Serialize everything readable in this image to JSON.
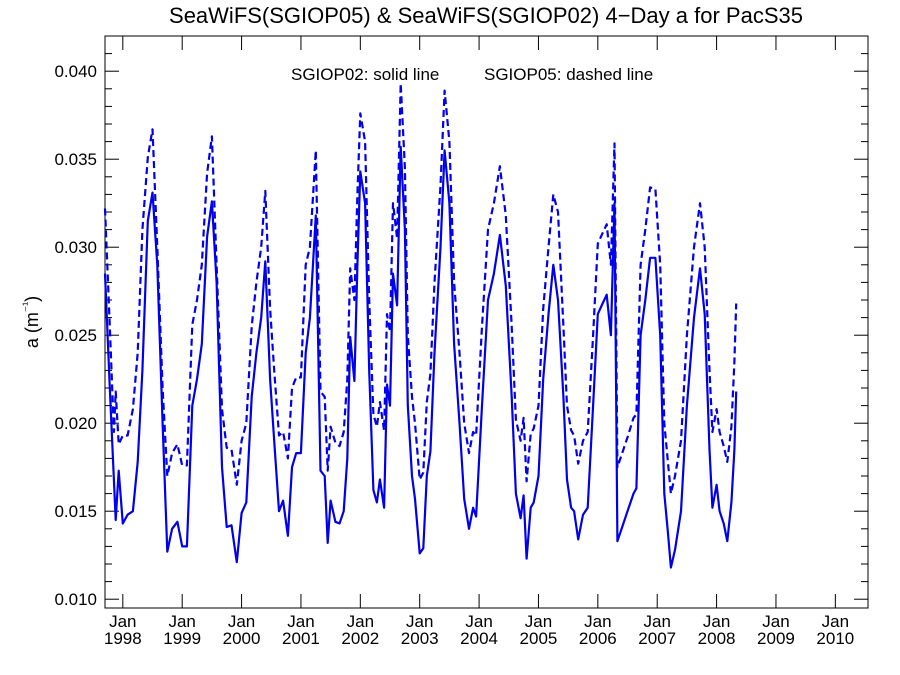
{
  "chart_data": {
    "type": "line",
    "title": "SeaWiFS(SGIOP05) & SeaWiFS(SGIOP02) 4−Day a for PacS35",
    "ylabel": "a (m⁻¹)",
    "xlabel": "",
    "annotations": [
      "SGIOP02: solid line",
      "SGIOP05: dashed line"
    ],
    "xlim": [
      1997.7,
      2010.55
    ],
    "ylim": [
      0.0095,
      0.042
    ],
    "y_ticks": [
      0.01,
      0.015,
      0.02,
      0.025,
      0.03,
      0.035,
      0.04
    ],
    "y_tick_labels": [
      "0.010",
      "0.015",
      "0.020",
      "0.025",
      "0.030",
      "0.035",
      "0.040"
    ],
    "x_ticks": [
      1998,
      1999,
      2000,
      2001,
      2002,
      2003,
      2004,
      2005,
      2006,
      2007,
      2008,
      2009,
      2010
    ],
    "x_tick_month": "Jan",
    "x_tick_years": [
      "1998",
      "1999",
      "2000",
      "2001",
      "2002",
      "2003",
      "2004",
      "2005",
      "2006",
      "2007",
      "2008",
      "2009",
      "2010"
    ],
    "grid": false,
    "line_color": "#0000ee",
    "series": [
      {
        "style": "solid",
        "points": [
          [
            1997.7,
            0.0285
          ],
          [
            1997.78,
            0.022
          ],
          [
            1997.88,
            0.0145
          ],
          [
            1997.93,
            0.0173
          ],
          [
            1998.0,
            0.0143
          ],
          [
            1998.08,
            0.0148
          ],
          [
            1998.17,
            0.015
          ],
          [
            1998.25,
            0.0178
          ],
          [
            1998.33,
            0.023
          ],
          [
            1998.42,
            0.0315
          ],
          [
            1998.5,
            0.0331
          ],
          [
            1998.58,
            0.029
          ],
          [
            1998.67,
            0.02
          ],
          [
            1998.75,
            0.0127
          ],
          [
            1998.83,
            0.014
          ],
          [
            1998.92,
            0.0144
          ],
          [
            1999.0,
            0.013
          ],
          [
            1999.08,
            0.013
          ],
          [
            1999.17,
            0.021
          ],
          [
            1999.25,
            0.0225
          ],
          [
            1999.33,
            0.0245
          ],
          [
            1999.42,
            0.0306
          ],
          [
            1999.5,
            0.0326
          ],
          [
            1999.58,
            0.028
          ],
          [
            1999.67,
            0.0175
          ],
          [
            1999.75,
            0.0141
          ],
          [
            1999.83,
            0.0142
          ],
          [
            1999.92,
            0.0121
          ],
          [
            2000.0,
            0.0149
          ],
          [
            2000.08,
            0.0155
          ],
          [
            2000.17,
            0.0215
          ],
          [
            2000.25,
            0.024
          ],
          [
            2000.33,
            0.026
          ],
          [
            2000.4,
            0.0292
          ],
          [
            2000.48,
            0.0225
          ],
          [
            2000.55,
            0.019
          ],
          [
            2000.63,
            0.015
          ],
          [
            2000.7,
            0.0156
          ],
          [
            2000.78,
            0.0136
          ],
          [
            2000.85,
            0.0175
          ],
          [
            2000.92,
            0.0183
          ],
          [
            2001.0,
            0.0183
          ],
          [
            2001.08,
            0.024
          ],
          [
            2001.15,
            0.026
          ],
          [
            2001.25,
            0.0318
          ],
          [
            2001.33,
            0.0173
          ],
          [
            2001.4,
            0.017
          ],
          [
            2001.45,
            0.0132
          ],
          [
            2001.5,
            0.0156
          ],
          [
            2001.58,
            0.0144
          ],
          [
            2001.65,
            0.0143
          ],
          [
            2001.72,
            0.015
          ],
          [
            2001.78,
            0.018
          ],
          [
            2001.83,
            0.0249
          ],
          [
            2001.9,
            0.0224
          ],
          [
            2001.95,
            0.029
          ],
          [
            2002.0,
            0.0343
          ],
          [
            2002.08,
            0.0325
          ],
          [
            2002.15,
            0.023
          ],
          [
            2002.22,
            0.0162
          ],
          [
            2002.28,
            0.0155
          ],
          [
            2002.33,
            0.0168
          ],
          [
            2002.4,
            0.0152
          ],
          [
            2002.45,
            0.0222
          ],
          [
            2002.5,
            0.021
          ],
          [
            2002.55,
            0.0285
          ],
          [
            2002.62,
            0.0267
          ],
          [
            2002.68,
            0.0357
          ],
          [
            2002.75,
            0.031
          ],
          [
            2002.8,
            0.021
          ],
          [
            2002.87,
            0.017
          ],
          [
            2002.92,
            0.0157
          ],
          [
            2003.0,
            0.0126
          ],
          [
            2003.06,
            0.0129
          ],
          [
            2003.12,
            0.017
          ],
          [
            2003.18,
            0.0184
          ],
          [
            2003.25,
            0.024
          ],
          [
            2003.35,
            0.03
          ],
          [
            2003.42,
            0.0355
          ],
          [
            2003.5,
            0.0325
          ],
          [
            2003.58,
            0.0245
          ],
          [
            2003.67,
            0.02
          ],
          [
            2003.75,
            0.0157
          ],
          [
            2003.83,
            0.014
          ],
          [
            2003.9,
            0.0152
          ],
          [
            2003.95,
            0.0147
          ],
          [
            2004.05,
            0.021
          ],
          [
            2004.15,
            0.027
          ],
          [
            2004.25,
            0.0285
          ],
          [
            2004.35,
            0.0307
          ],
          [
            2004.45,
            0.0278
          ],
          [
            2004.55,
            0.0215
          ],
          [
            2004.62,
            0.016
          ],
          [
            2004.7,
            0.0146
          ],
          [
            2004.75,
            0.0159
          ],
          [
            2004.8,
            0.0123
          ],
          [
            2004.87,
            0.0152
          ],
          [
            2004.92,
            0.0155
          ],
          [
            2005.0,
            0.017
          ],
          [
            2005.08,
            0.0225
          ],
          [
            2005.17,
            0.0262
          ],
          [
            2005.25,
            0.029
          ],
          [
            2005.33,
            0.027
          ],
          [
            2005.42,
            0.0215
          ],
          [
            2005.48,
            0.0168
          ],
          [
            2005.55,
            0.0152
          ],
          [
            2005.6,
            0.015
          ],
          [
            2005.67,
            0.0134
          ],
          [
            2005.75,
            0.0148
          ],
          [
            2005.83,
            0.0152
          ],
          [
            2005.92,
            0.021
          ],
          [
            2006.0,
            0.0262
          ],
          [
            2006.08,
            0.0268
          ],
          [
            2006.15,
            0.0273
          ],
          [
            2006.22,
            0.025
          ],
          [
            2006.28,
            0.0325
          ],
          [
            2006.33,
            0.0133
          ],
          [
            2006.4,
            0.014
          ],
          [
            2006.5,
            0.015
          ],
          [
            2006.6,
            0.016
          ],
          [
            2006.65,
            0.0163
          ],
          [
            2006.72,
            0.025
          ],
          [
            2006.8,
            0.027
          ],
          [
            2006.88,
            0.0294
          ],
          [
            2006.97,
            0.0294
          ],
          [
            2007.05,
            0.025
          ],
          [
            2007.12,
            0.016
          ],
          [
            2007.18,
            0.0138
          ],
          [
            2007.23,
            0.0118
          ],
          [
            2007.3,
            0.0128
          ],
          [
            2007.4,
            0.015
          ],
          [
            2007.5,
            0.021
          ],
          [
            2007.62,
            0.026
          ],
          [
            2007.72,
            0.0288
          ],
          [
            2007.8,
            0.0262
          ],
          [
            2007.88,
            0.0185
          ],
          [
            2007.93,
            0.0152
          ],
          [
            2008.0,
            0.0165
          ],
          [
            2008.05,
            0.015
          ],
          [
            2008.12,
            0.0143
          ],
          [
            2008.18,
            0.0133
          ],
          [
            2008.25,
            0.0155
          ],
          [
            2008.3,
            0.0185
          ],
          [
            2008.33,
            0.0218
          ]
        ]
      },
      {
        "style": "dashed",
        "points": [
          [
            1997.7,
            0.0322
          ],
          [
            1997.78,
            0.0255
          ],
          [
            1997.85,
            0.0195
          ],
          [
            1997.88,
            0.0218
          ],
          [
            1997.93,
            0.0188
          ],
          [
            1998.0,
            0.0193
          ],
          [
            1998.08,
            0.0193
          ],
          [
            1998.17,
            0.0208
          ],
          [
            1998.25,
            0.024
          ],
          [
            1998.33,
            0.031
          ],
          [
            1998.42,
            0.0351
          ],
          [
            1998.5,
            0.0367
          ],
          [
            1998.58,
            0.03
          ],
          [
            1998.67,
            0.022
          ],
          [
            1998.75,
            0.017
          ],
          [
            1998.83,
            0.0183
          ],
          [
            1998.92,
            0.0188
          ],
          [
            1999.0,
            0.0176
          ],
          [
            1999.08,
            0.0176
          ],
          [
            1999.17,
            0.0256
          ],
          [
            1999.25,
            0.027
          ],
          [
            1999.33,
            0.029
          ],
          [
            1999.42,
            0.0342
          ],
          [
            1999.5,
            0.0363
          ],
          [
            1999.58,
            0.029
          ],
          [
            1999.67,
            0.0208
          ],
          [
            1999.75,
            0.0186
          ],
          [
            1999.83,
            0.0185
          ],
          [
            1999.92,
            0.0165
          ],
          [
            2000.0,
            0.019
          ],
          [
            2000.08,
            0.02
          ],
          [
            2000.17,
            0.0255
          ],
          [
            2000.25,
            0.028
          ],
          [
            2000.33,
            0.03
          ],
          [
            2000.4,
            0.0332
          ],
          [
            2000.48,
            0.0265
          ],
          [
            2000.55,
            0.023
          ],
          [
            2000.63,
            0.0193
          ],
          [
            2000.7,
            0.0195
          ],
          [
            2000.78,
            0.018
          ],
          [
            2000.85,
            0.022
          ],
          [
            2000.92,
            0.0226
          ],
          [
            2001.0,
            0.0226
          ],
          [
            2001.08,
            0.029
          ],
          [
            2001.15,
            0.03
          ],
          [
            2001.25,
            0.0355
          ],
          [
            2001.33,
            0.0218
          ],
          [
            2001.4,
            0.0215
          ],
          [
            2001.45,
            0.0173
          ],
          [
            2001.5,
            0.0198
          ],
          [
            2001.58,
            0.0189
          ],
          [
            2001.65,
            0.0187
          ],
          [
            2001.72,
            0.0195
          ],
          [
            2001.78,
            0.0225
          ],
          [
            2001.83,
            0.0288
          ],
          [
            2001.9,
            0.027
          ],
          [
            2001.95,
            0.033
          ],
          [
            2002.0,
            0.0376
          ],
          [
            2002.08,
            0.036
          ],
          [
            2002.15,
            0.027
          ],
          [
            2002.22,
            0.0205
          ],
          [
            2002.28,
            0.0198
          ],
          [
            2002.33,
            0.0212
          ],
          [
            2002.4,
            0.0196
          ],
          [
            2002.45,
            0.0262
          ],
          [
            2002.5,
            0.0252
          ],
          [
            2002.55,
            0.0325
          ],
          [
            2002.62,
            0.0305
          ],
          [
            2002.68,
            0.0393
          ],
          [
            2002.75,
            0.0345
          ],
          [
            2002.8,
            0.025
          ],
          [
            2002.87,
            0.0215
          ],
          [
            2002.92,
            0.02
          ],
          [
            2003.0,
            0.0168
          ],
          [
            2003.06,
            0.0172
          ],
          [
            2003.12,
            0.0212
          ],
          [
            2003.18,
            0.0228
          ],
          [
            2003.25,
            0.028
          ],
          [
            2003.35,
            0.0335
          ],
          [
            2003.42,
            0.0389
          ],
          [
            2003.5,
            0.036
          ],
          [
            2003.58,
            0.028
          ],
          [
            2003.67,
            0.024
          ],
          [
            2003.75,
            0.02
          ],
          [
            2003.83,
            0.0183
          ],
          [
            2003.9,
            0.0195
          ],
          [
            2003.95,
            0.0193
          ],
          [
            2004.05,
            0.0255
          ],
          [
            2004.15,
            0.031
          ],
          [
            2004.25,
            0.0325
          ],
          [
            2004.35,
            0.0346
          ],
          [
            2004.45,
            0.0318
          ],
          [
            2004.55,
            0.0255
          ],
          [
            2004.62,
            0.0202
          ],
          [
            2004.7,
            0.019
          ],
          [
            2004.75,
            0.0203
          ],
          [
            2004.8,
            0.0167
          ],
          [
            2004.87,
            0.0194
          ],
          [
            2004.92,
            0.0197
          ],
          [
            2005.0,
            0.021
          ],
          [
            2005.08,
            0.0265
          ],
          [
            2005.17,
            0.03
          ],
          [
            2005.25,
            0.033
          ],
          [
            2005.33,
            0.032
          ],
          [
            2005.42,
            0.0255
          ],
          [
            2005.48,
            0.021
          ],
          [
            2005.55,
            0.0196
          ],
          [
            2005.6,
            0.0193
          ],
          [
            2005.67,
            0.0177
          ],
          [
            2005.75,
            0.019
          ],
          [
            2005.83,
            0.0195
          ],
          [
            2005.92,
            0.025
          ],
          [
            2006.0,
            0.0302
          ],
          [
            2006.08,
            0.0308
          ],
          [
            2006.15,
            0.0313
          ],
          [
            2006.22,
            0.029
          ],
          [
            2006.28,
            0.0359
          ],
          [
            2006.33,
            0.0175
          ],
          [
            2006.4,
            0.0182
          ],
          [
            2006.5,
            0.0192
          ],
          [
            2006.6,
            0.0203
          ],
          [
            2006.65,
            0.0205
          ],
          [
            2006.72,
            0.029
          ],
          [
            2006.8,
            0.031
          ],
          [
            2006.88,
            0.0334
          ],
          [
            2006.97,
            0.0333
          ],
          [
            2007.05,
            0.029
          ],
          [
            2007.12,
            0.02
          ],
          [
            2007.18,
            0.0178
          ],
          [
            2007.23,
            0.016
          ],
          [
            2007.3,
            0.017
          ],
          [
            2007.4,
            0.019
          ],
          [
            2007.5,
            0.025
          ],
          [
            2007.62,
            0.03
          ],
          [
            2007.72,
            0.0325
          ],
          [
            2007.8,
            0.03
          ],
          [
            2007.88,
            0.023
          ],
          [
            2007.93,
            0.0195
          ],
          [
            2008.0,
            0.0208
          ],
          [
            2008.05,
            0.0195
          ],
          [
            2008.12,
            0.0187
          ],
          [
            2008.18,
            0.0178
          ],
          [
            2008.25,
            0.0198
          ],
          [
            2008.3,
            0.0235
          ],
          [
            2008.33,
            0.0268
          ]
        ]
      }
    ]
  }
}
